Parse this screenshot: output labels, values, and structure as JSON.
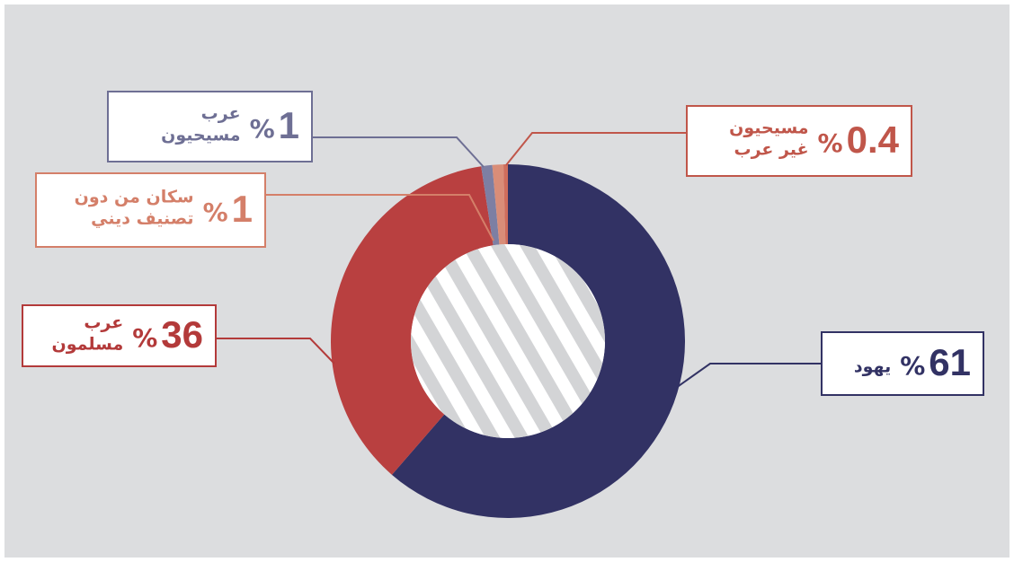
{
  "chart_data": {
    "type": "donut",
    "unit": "%",
    "categories": [
      [
        "يهود"
      ],
      [
        "عرب",
        "مسلمون"
      ],
      [
        "عرب",
        "مسيحيون"
      ],
      [
        "سكان من دون",
        "تصنيف ديني"
      ],
      [
        "مسيحيون",
        "غير عرب"
      ]
    ],
    "values": [
      61,
      36,
      1,
      1,
      0.4
    ],
    "colors": [
      "#323264",
      "#b94040",
      "#7d7fa3",
      "#d98d78",
      "#cf6d5c"
    ],
    "label_colors": [
      "#323264",
      "#b33a3a",
      "#6e6f94",
      "#d47f69",
      "#c0564a"
    ]
  }
}
